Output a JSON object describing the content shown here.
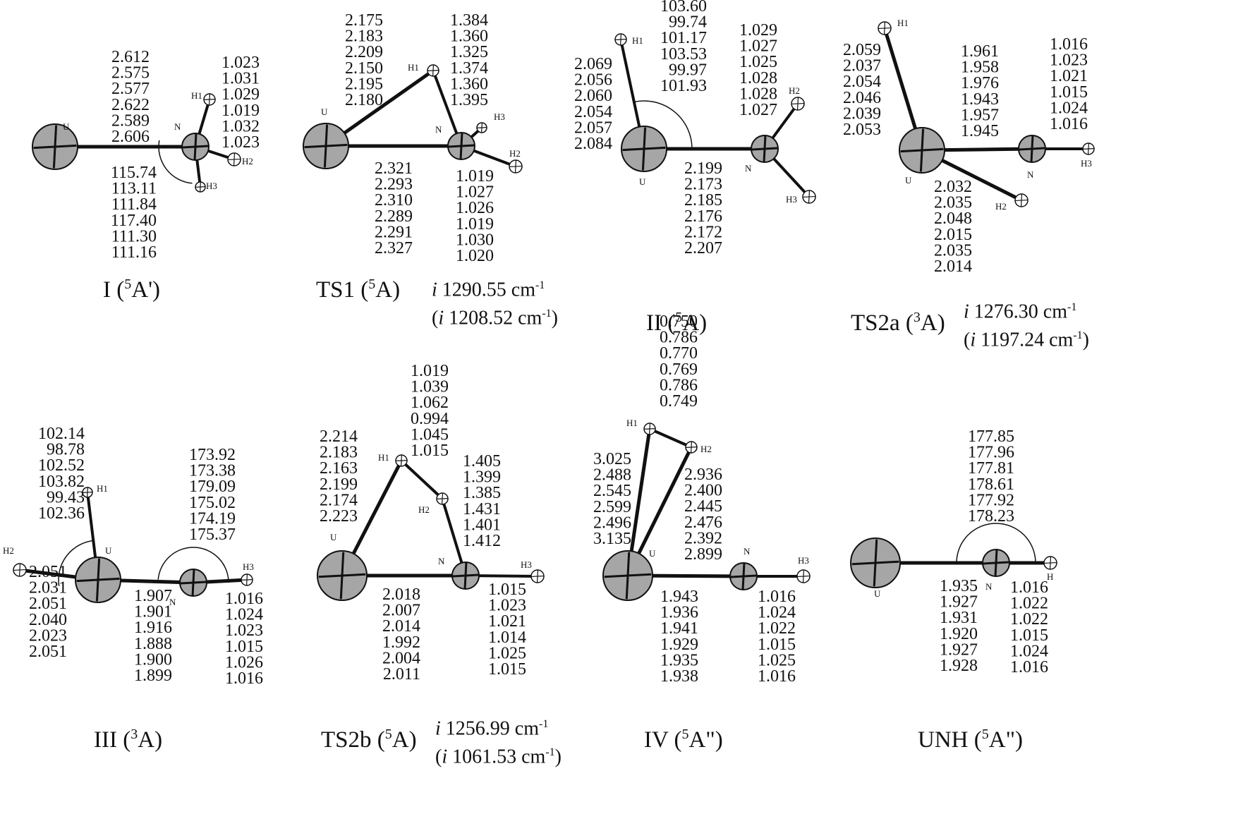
{
  "structures": [
    {
      "id": "I",
      "title": "I (",
      "state_sup": "5",
      "state_sym": "A'",
      "title_close": ")",
      "atoms": [
        {
          "label": "U",
          "r": 32
        },
        {
          "label": "N",
          "r": 19
        },
        {
          "label": "H1",
          "r": 8
        },
        {
          "label": "H2",
          "r": 9
        },
        {
          "label": "H3",
          "r": 7
        }
      ],
      "value_groups": {
        "U-N distance": [
          "2.612",
          "2.575",
          "2.577",
          "2.622",
          "2.589",
          "2.606"
        ],
        "N-H distance": [
          "1.023",
          "1.031",
          "1.029",
          "1.019",
          "1.032",
          "1.023"
        ],
        "U-N-H angle": [
          "115.74",
          "113.11",
          "111.84",
          "117.40",
          "111.30",
          "111.16"
        ]
      }
    },
    {
      "id": "TS1",
      "title": "TS1 (",
      "state_sup": "5",
      "state_sym": "A",
      "title_close": ")",
      "freq": [
        "i",
        " 1290.55 cm",
        "-1"
      ],
      "freq2": [
        "(",
        "i",
        " 1208.52 cm",
        "-1",
        ")"
      ],
      "atoms": [
        {
          "label": "U",
          "r": 32
        },
        {
          "label": "N",
          "r": 19
        },
        {
          "label": "H1",
          "r": 8
        },
        {
          "label": "H2",
          "r": 9
        },
        {
          "label": "H3",
          "r": 7
        }
      ],
      "value_groups": {
        "U-H1 distance": [
          "2.175",
          "2.183",
          "2.209",
          "2.150",
          "2.195",
          "2.180"
        ],
        "N-H1 distance": [
          "1.384",
          "1.360",
          "1.325",
          "1.374",
          "1.360",
          "1.395"
        ],
        "U-N distance": [
          "2.321",
          "2.293",
          "2.310",
          "2.289",
          "2.291",
          "2.327"
        ],
        "N-H distance": [
          "1.019",
          "1.027",
          "1.026",
          "1.019",
          "1.030",
          "1.020"
        ]
      }
    },
    {
      "id": "II",
      "title": "II (",
      "state_sup": "5",
      "state_sym": "A",
      "title_close": ")",
      "atoms": [
        {
          "label": "U",
          "r": 32
        },
        {
          "label": "N",
          "r": 19
        },
        {
          "label": "H1",
          "r": 8
        },
        {
          "label": "H2",
          "r": 9
        },
        {
          "label": "H3",
          "r": 9
        }
      ],
      "value_groups": {
        "H1-U-N angle": [
          "103.60",
          "99.74",
          "101.17",
          "103.53",
          "99.97",
          "101.93"
        ],
        "U-H1 distance": [
          "2.069",
          "2.056",
          "2.060",
          "2.054",
          "2.057",
          "2.084"
        ],
        "N-H distance": [
          "1.029",
          "1.027",
          "1.025",
          "1.028",
          "1.028",
          "1.027"
        ],
        "U-N distance": [
          "2.199",
          "2.173",
          "2.185",
          "2.176",
          "2.172",
          "2.207"
        ]
      }
    },
    {
      "id": "TS2a",
      "title": "TS2a (",
      "state_sup": "3",
      "state_sym": "A",
      "title_close": ")",
      "freq": [
        "i",
        " 1276.30 cm",
        "-1"
      ],
      "freq2": [
        "(",
        "i",
        " 1197.24 cm",
        "-1",
        ")"
      ],
      "atoms": [
        {
          "label": "U",
          "r": 32
        },
        {
          "label": "N",
          "r": 19
        },
        {
          "label": "H1",
          "r": 9
        },
        {
          "label": "H2",
          "r": 9
        },
        {
          "label": "H3",
          "r": 8
        }
      ],
      "value_groups": {
        "U-H1 distance": [
          "2.059",
          "2.037",
          "2.054",
          "2.046",
          "2.039",
          "2.053"
        ],
        "U-N distance": [
          "1.961",
          "1.958",
          "1.976",
          "1.943",
          "1.957",
          "1.945"
        ],
        "N-H distance": [
          "1.016",
          "1.023",
          "1.021",
          "1.015",
          "1.024",
          "1.016"
        ],
        "U-H2 distance": [
          "2.032",
          "2.035",
          "2.048",
          "2.015",
          "2.035",
          "2.014"
        ]
      }
    },
    {
      "id": "III",
      "title": "III (",
      "state_sup": "3",
      "state_sym": "A",
      "title_close": ")",
      "atoms": [
        {
          "label": "U",
          "r": 32
        },
        {
          "label": "N",
          "r": 19
        },
        {
          "label": "H1",
          "r": 7
        },
        {
          "label": "H2",
          "r": 9
        },
        {
          "label": "H3",
          "r": 8
        }
      ],
      "value_groups": {
        "H1-U-H2 angle": [
          "102.14",
          "98.78",
          "102.52",
          "103.82",
          "99.43",
          "102.36"
        ],
        "U-N-H angle": [
          "173.92",
          "173.38",
          "179.09",
          "175.02",
          "174.19",
          "175.37"
        ],
        "U-H2 distance": [
          "2.051",
          "2.031",
          "2.051",
          "2.040",
          "2.023",
          "2.051"
        ],
        "U-N distance": [
          "1.907",
          "1.901",
          "1.916",
          "1.888",
          "1.900",
          "1.899"
        ],
        "N-H distance": [
          "1.016",
          "1.024",
          "1.023",
          "1.015",
          "1.026",
          "1.016"
        ]
      }
    },
    {
      "id": "TS2b",
      "title": "TS2b (",
      "state_sup": "5",
      "state_sym": "A",
      "title_close": ")",
      "freq": [
        "i",
        " 1256.99 cm",
        "-1"
      ],
      "freq2": [
        "(",
        "i",
        " 1061.53 cm",
        "-1",
        ")"
      ],
      "atoms": [
        {
          "label": "U",
          "r": 35
        },
        {
          "label": "N",
          "r": 19
        },
        {
          "label": "H1",
          "r": 8
        },
        {
          "label": "H2",
          "r": 8
        },
        {
          "label": "H3",
          "r": 9
        }
      ],
      "value_groups": {
        "H1-H2 distance": [
          "1.019",
          "1.039",
          "1.062",
          "0.994",
          "1.045",
          "1.015"
        ],
        "U-H1 distance": [
          "2.214",
          "2.183",
          "2.163",
          "2.199",
          "2.174",
          "2.223"
        ],
        "N-H2 distance": [
          "1.405",
          "1.399",
          "1.385",
          "1.431",
          "1.401",
          "1.412"
        ],
        "U-N distance": [
          "2.018",
          "2.007",
          "2.014",
          "1.992",
          "2.004",
          "2.011"
        ],
        "N-H3 distance": [
          "1.015",
          "1.023",
          "1.021",
          "1.014",
          "1.025",
          "1.015"
        ]
      }
    },
    {
      "id": "IV",
      "title": "IV (",
      "state_sup": "5",
      "state_sym": "A\"",
      "title_close": ")",
      "atoms": [
        {
          "label": "U",
          "r": 35
        },
        {
          "label": "N",
          "r": 19
        },
        {
          "label": "H1",
          "r": 8
        },
        {
          "label": "H2",
          "r": 8
        },
        {
          "label": "H3",
          "r": 9
        }
      ],
      "value_groups": {
        "H1-H2 distance": [
          "0.750",
          "0.786",
          "0.770",
          "0.769",
          "0.786",
          "0.749"
        ],
        "U-H1 distance": [
          "3.025",
          "2.488",
          "2.545",
          "2.599",
          "2.496",
          "3.135"
        ],
        "U-H2 distance": [
          "2.936",
          "2.400",
          "2.445",
          "2.476",
          "2.392",
          "2.899"
        ],
        "U-N distance": [
          "1.943",
          "1.936",
          "1.941",
          "1.929",
          "1.935",
          "1.938"
        ],
        "N-H3 distance": [
          "1.016",
          "1.024",
          "1.022",
          "1.015",
          "1.025",
          "1.016"
        ]
      }
    },
    {
      "id": "UNH",
      "title": "UNH (",
      "state_sup": "5",
      "state_sym": "A\"",
      "title_close": ")",
      "atoms": [
        {
          "label": "U",
          "r": 35
        },
        {
          "label": "N",
          "r": 19
        },
        {
          "label": "H",
          "r": 9
        }
      ],
      "value_groups": {
        "U-N-H angle": [
          "177.85",
          "177.96",
          "177.81",
          "178.61",
          "177.92",
          "178.23"
        ],
        "U-N distance": [
          "1.935",
          "1.927",
          "1.931",
          "1.920",
          "1.927",
          "1.928"
        ],
        "N-H distance": [
          "1.016",
          "1.022",
          "1.022",
          "1.015",
          "1.024",
          "1.016"
        ]
      }
    }
  ],
  "colors": {
    "atom_fill": "#a6a6a6",
    "atom_stroke": "#111111",
    "h_fill": "#ffffff",
    "bond": "#111111",
    "text": "#111111"
  }
}
